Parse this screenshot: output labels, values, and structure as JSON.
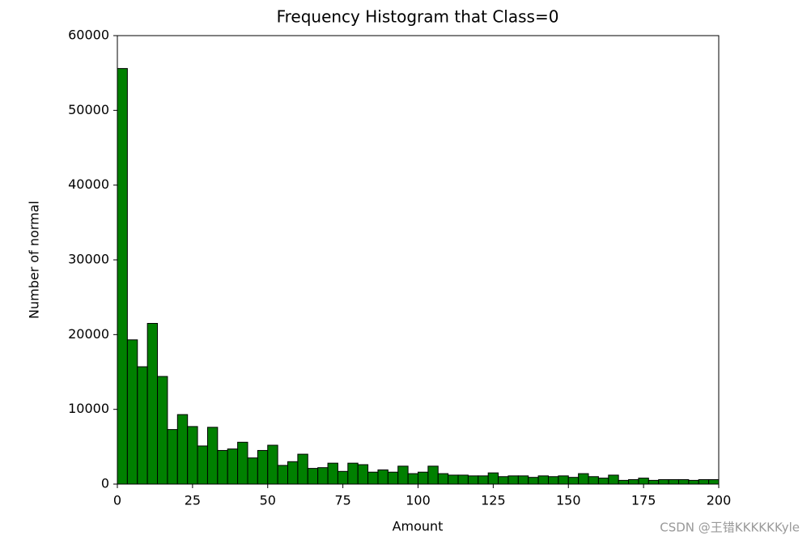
{
  "chart_data": {
    "type": "histogram",
    "title": "Frequency Histogram that Class=0",
    "xlabel": "Amount",
    "ylabel": "Number of normal",
    "bins": [
      0,
      3.3333,
      6.6667,
      10,
      13.3333,
      16.6667,
      20,
      23.3333,
      26.6667,
      30,
      33.3333,
      36.6667,
      40,
      43.3333,
      46.6667,
      50,
      53.3333,
      56.6667,
      60,
      63.3333,
      66.6667,
      70,
      73.3333,
      76.6667,
      80,
      83.3333,
      86.6667,
      90,
      93.3333,
      96.6667,
      100,
      103.3333,
      106.6667,
      110,
      113.3333,
      116.6667,
      120,
      123.3333,
      126.6667,
      130,
      133.3333,
      136.6667,
      140,
      143.3333,
      146.6667,
      150,
      153.3333,
      156.6667,
      160,
      163.3333,
      166.6667,
      170,
      173.3333,
      176.6667,
      180,
      183.3333,
      186.6667,
      190,
      193.3333,
      196.6667,
      200
    ],
    "values": [
      55600,
      19300,
      15700,
      21500,
      14400,
      7300,
      9300,
      7700,
      5100,
      7600,
      4500,
      4700,
      5600,
      3500,
      4500,
      5200,
      2500,
      3000,
      4000,
      2100,
      2200,
      2800,
      1700,
      2800,
      2600,
      1600,
      1900,
      1600,
      2400,
      1400,
      1600,
      2400,
      1400,
      1200,
      1200,
      1100,
      1100,
      1500,
      1000,
      1100,
      1100,
      900,
      1100,
      1000,
      1100,
      900,
      1400,
      1000,
      800,
      1200,
      500,
      600,
      800,
      500,
      600,
      600,
      600,
      500,
      600,
      600
    ],
    "color": "#008000",
    "edgecolor": "#000000",
    "xlim": [
      0,
      200
    ],
    "xticks": [
      0,
      25,
      50,
      75,
      100,
      125,
      150,
      175,
      200
    ],
    "ylim": [
      0,
      60000
    ],
    "yticks": [
      0,
      10000,
      20000,
      30000,
      40000,
      50000,
      60000
    ],
    "grid": false
  },
  "watermark": "CSDN @王错KKKKKKyle"
}
